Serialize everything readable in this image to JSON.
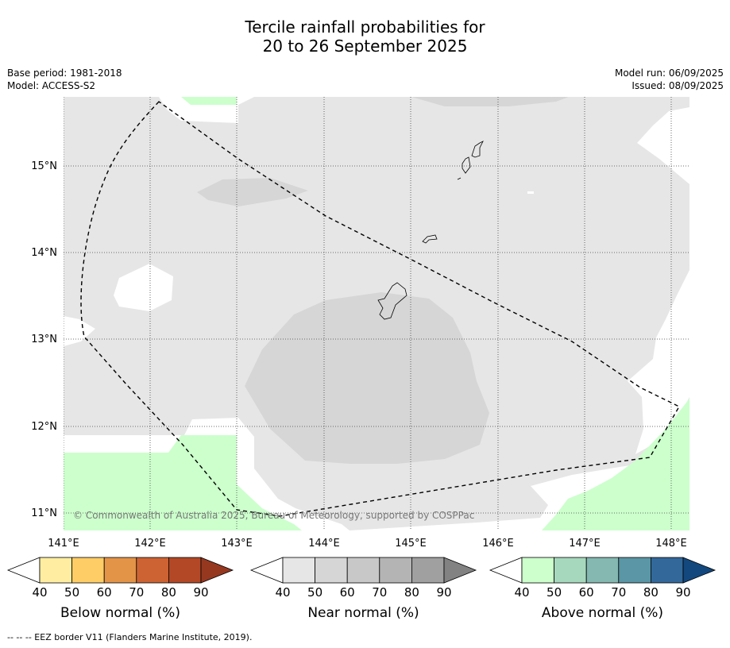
{
  "title": {
    "line1": "Tercile rainfall probabilities for",
    "line2": "20 to 26 September 2025"
  },
  "meta_left": {
    "base_period": "Base period: 1981-2018",
    "model": "Model: ACCESS-S2"
  },
  "meta_right": {
    "model_run": "Model run: 06/09/2025",
    "issued": "Issued: 08/09/2025"
  },
  "map": {
    "lat_labels": [
      "15°N",
      "14°N",
      "13°N",
      "12°N",
      "11°N"
    ],
    "lon_labels": [
      "141°E",
      "142°E",
      "143°E",
      "144°E",
      "145°E",
      "146°E",
      "147°E",
      "148°E"
    ],
    "copyright": "© Commonwealth of Australia 2025, Bureau of Meteorology, supported by COSPPac",
    "colors": {
      "background_white": "#ffffff",
      "near_40": "#e6e6e6",
      "near_50": "#d6d6d6",
      "above_40": "#ccffcc",
      "eez_border": "#000000"
    }
  },
  "colorbars": [
    {
      "label": "Below normal (%)",
      "ticks": [
        "40",
        "50",
        "60",
        "70",
        "80",
        "90"
      ],
      "colors": [
        "#ffffff",
        "#ffeea1",
        "#fecd66",
        "#e39447",
        "#cd6333",
        "#b34826",
        "#963820"
      ]
    },
    {
      "label": "Near normal (%)",
      "ticks": [
        "40",
        "50",
        "60",
        "70",
        "80",
        "90"
      ],
      "colors": [
        "#ffffff",
        "#e6e6e6",
        "#d6d6d6",
        "#c8c8c8",
        "#b4b4b4",
        "#a0a0a0",
        "#828282"
      ]
    },
    {
      "label": "Above normal (%)",
      "ticks": [
        "40",
        "50",
        "60",
        "70",
        "80",
        "90"
      ],
      "colors": [
        "#ffffff",
        "#ccffcc",
        "#a6d8bd",
        "#84b8b1",
        "#5a96a5",
        "#33689b",
        "#13487e"
      ]
    }
  ],
  "footnote": "--  --  -- EEZ border V11 (Flanders Marine Institute, 2019)."
}
